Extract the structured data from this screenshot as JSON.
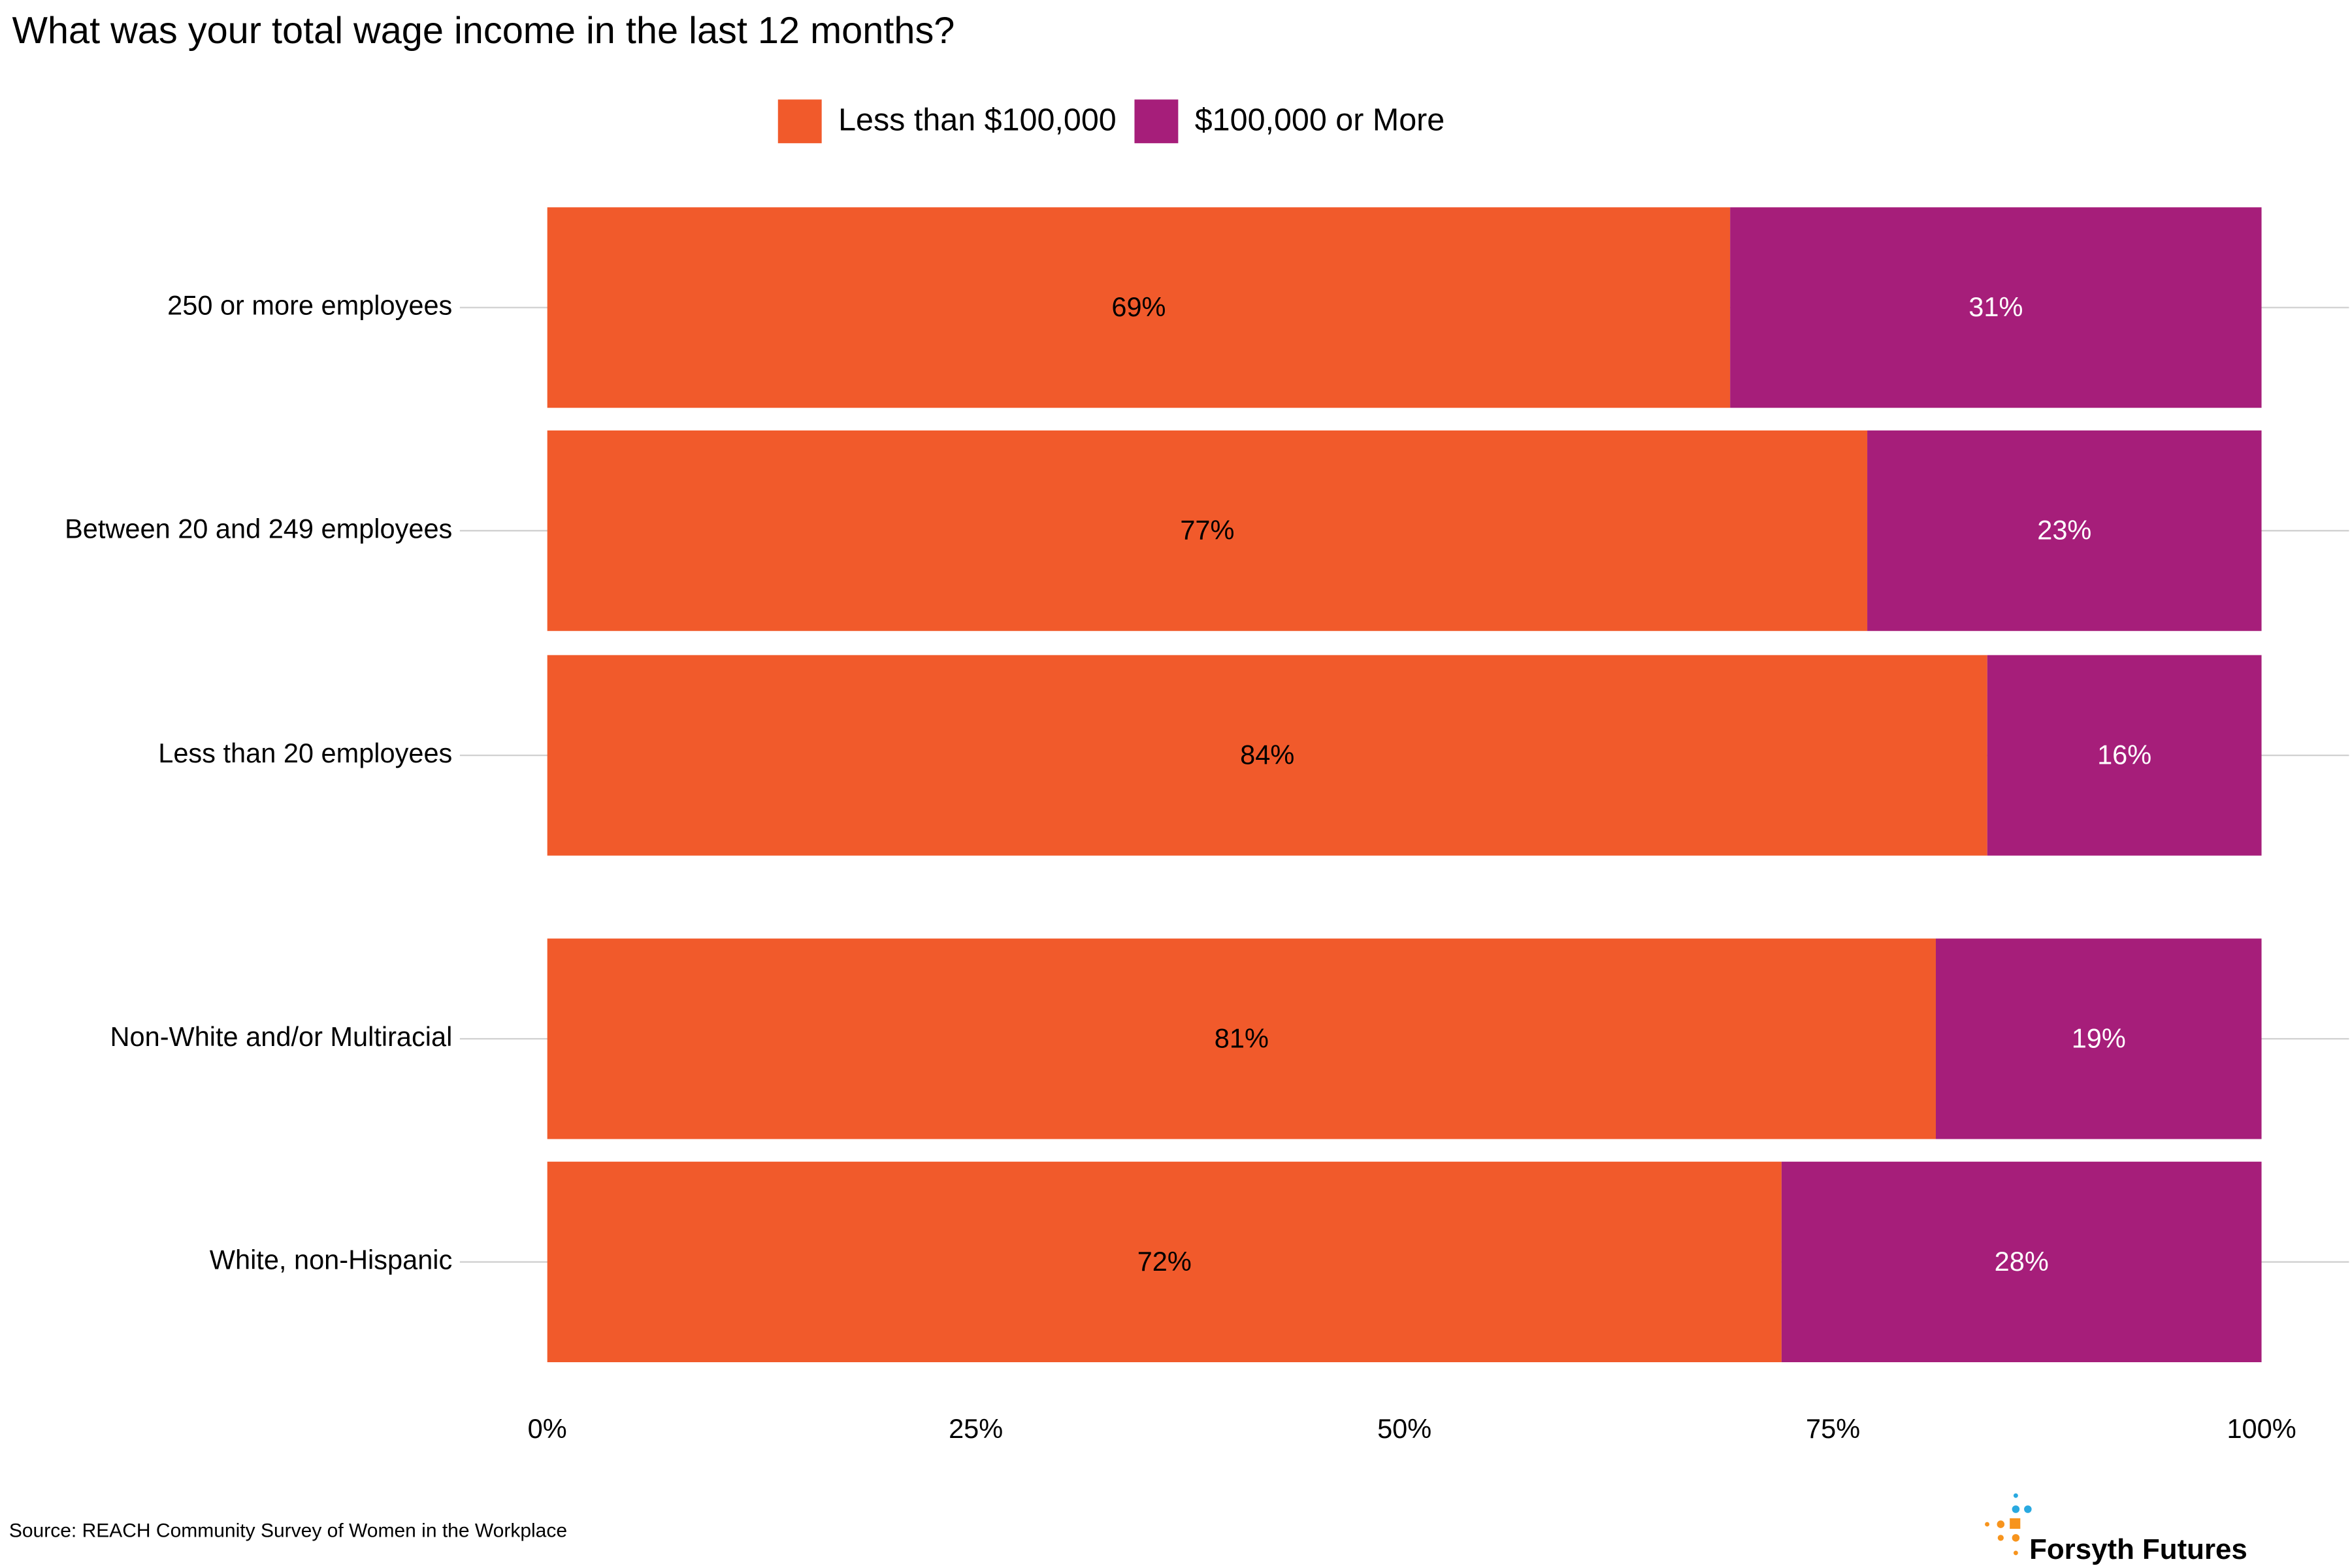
{
  "chart_data": {
    "type": "stacked_bar",
    "orientation": "horizontal",
    "title": "What was your total wage income in the last 12 months?",
    "categories": [
      "250 or more employees",
      "Between 20 and 249 employees",
      "Less than 20 employees",
      "Non-White and/or Multiracial",
      "White, non-Hispanic"
    ],
    "series": [
      {
        "name": "Less than $100,000",
        "color": "#f15a2b",
        "values": [
          69,
          77,
          84,
          81,
          72
        ],
        "value_labels": [
          "69%",
          "77%",
          "84%",
          "81%",
          "72%"
        ]
      },
      {
        "name": "$100,000 or More",
        "color": "#a61e7a",
        "values": [
          31,
          23,
          16,
          19,
          28
        ],
        "value_labels": [
          "31%",
          "23%",
          "16%",
          "19%",
          "28%"
        ]
      }
    ],
    "xlim": [
      0,
      100
    ],
    "xticks": [
      {
        "value": 0,
        "label": "0%"
      },
      {
        "value": 25,
        "label": "25%"
      },
      {
        "value": 50,
        "label": "50%"
      },
      {
        "value": 75,
        "label": "75%"
      },
      {
        "value": 100,
        "label": "100%"
      }
    ],
    "legend_position": "top",
    "source": "Source: REACH Community Survey of Women in the Workplace",
    "logo": "Forsyth Futures"
  }
}
